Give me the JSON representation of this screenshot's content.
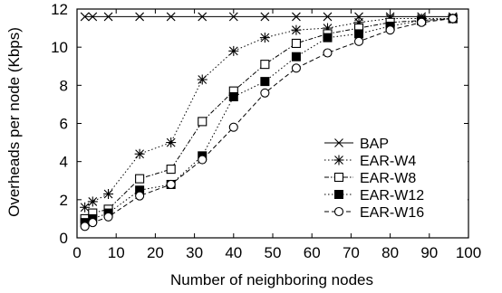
{
  "chart_data": {
    "type": "line",
    "title": "",
    "xlabel": "Number of neighboring nodes",
    "ylabel": "Overheads per node (Kbps)",
    "xlim": [
      0,
      100
    ],
    "ylim": [
      0,
      12
    ],
    "xticks": [
      0,
      10,
      20,
      30,
      40,
      50,
      60,
      70,
      80,
      90,
      100
    ],
    "yticks": [
      0,
      2,
      4,
      6,
      8,
      10,
      12
    ],
    "grid": false,
    "legend_position": "bottom-right",
    "series": [
      {
        "name": "BAP",
        "marker": "x",
        "dash": "solid",
        "color": "#000000",
        "x": [
          2,
          4,
          8,
          16,
          24,
          32,
          40,
          48,
          56,
          64,
          72,
          80,
          88,
          96
        ],
        "y": [
          11.6,
          11.6,
          11.6,
          11.6,
          11.6,
          11.6,
          11.6,
          11.6,
          11.6,
          11.6,
          11.6,
          11.6,
          11.6,
          11.6
        ]
      },
      {
        "name": "EAR-W4",
        "marker": "asterisk",
        "dash": "dotted",
        "color": "#000000",
        "x": [
          2,
          4,
          8,
          16,
          24,
          32,
          40,
          48,
          56,
          64,
          72,
          80,
          88,
          96
        ],
        "y": [
          1.6,
          1.9,
          2.3,
          4.4,
          5.0,
          8.3,
          9.8,
          10.5,
          10.9,
          11.0,
          11.3,
          11.5,
          11.5,
          11.5
        ]
      },
      {
        "name": "EAR-W8",
        "marker": "square-open",
        "dash": "dashdot",
        "color": "#000000",
        "x": [
          2,
          4,
          8,
          16,
          24,
          32,
          40,
          48,
          56,
          64,
          72,
          80,
          88,
          96
        ],
        "y": [
          1.0,
          1.3,
          1.5,
          3.1,
          3.6,
          6.1,
          7.7,
          9.1,
          10.2,
          10.7,
          11.0,
          11.3,
          11.4,
          11.5
        ]
      },
      {
        "name": "EAR-W12",
        "marker": "square-filled",
        "dash": "dotted",
        "color": "#000000",
        "x": [
          2,
          4,
          8,
          16,
          24,
          32,
          40,
          48,
          56,
          64,
          72,
          80,
          88,
          96
        ],
        "y": [
          0.8,
          1.0,
          1.3,
          2.5,
          2.8,
          4.3,
          7.4,
          8.2,
          9.5,
          10.5,
          10.7,
          11.1,
          11.4,
          11.5
        ]
      },
      {
        "name": "EAR-W16",
        "marker": "circle-open",
        "dash": "dashed",
        "color": "#000000",
        "x": [
          2,
          4,
          8,
          16,
          24,
          32,
          40,
          48,
          56,
          64,
          72,
          80,
          88,
          96
        ],
        "y": [
          0.6,
          0.8,
          1.1,
          2.2,
          2.8,
          4.1,
          5.8,
          7.6,
          8.9,
          9.7,
          10.3,
          10.9,
          11.3,
          11.5
        ]
      }
    ]
  }
}
